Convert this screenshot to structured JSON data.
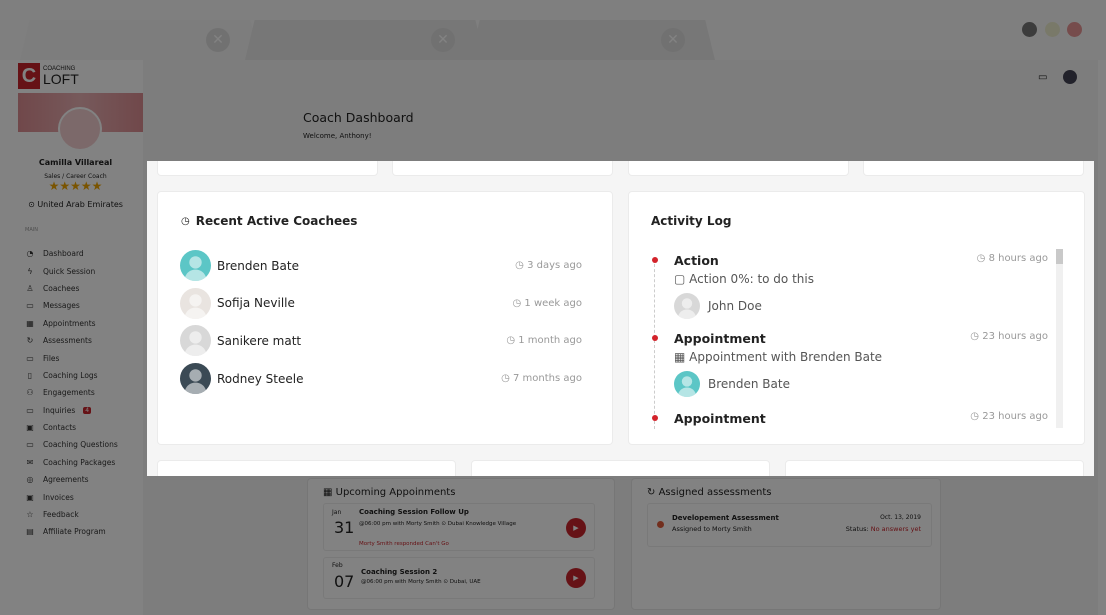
{
  "browser": {
    "tabs": [
      {
        "close": "✕"
      },
      {
        "close": "✕"
      },
      {
        "close": "✕"
      }
    ],
    "window_buttons": [
      "#777777",
      "#e0e0c8",
      "#e38a8a"
    ]
  },
  "brand": {
    "mark": "C",
    "small": "COACHING",
    "name": "LOFT",
    "color": "#c8242b"
  },
  "profile": {
    "name": "Camilla Villareal",
    "role": "Sales / Career Coach",
    "stars": "★★★★★",
    "rating": 4.5,
    "location": "United Arab Emirates"
  },
  "sidebar": {
    "section": "MAIN",
    "items": [
      {
        "label": "Dashboard",
        "icon": "dashboard-icon",
        "glyph": "◔"
      },
      {
        "label": "Quick Session",
        "icon": "lightning-icon",
        "glyph": "ϟ"
      },
      {
        "label": "Coachees",
        "icon": "users-icon",
        "glyph": "♙"
      },
      {
        "label": "Messages",
        "icon": "message-icon",
        "glyph": "▭"
      },
      {
        "label": "Appointments",
        "icon": "calendar-icon",
        "glyph": "▦"
      },
      {
        "label": "Assessments",
        "icon": "refresh-icon",
        "glyph": "↻"
      },
      {
        "label": "Files",
        "icon": "folder-icon",
        "glyph": "▭"
      },
      {
        "label": "Coaching Logs",
        "icon": "book-icon",
        "glyph": "▯"
      },
      {
        "label": "Engagements",
        "icon": "group-icon",
        "glyph": "⚇"
      },
      {
        "label": "Inquiries",
        "icon": "inquiry-icon",
        "glyph": "▭",
        "badge": "4"
      },
      {
        "label": "Contacts",
        "icon": "contacts-icon",
        "glyph": "▣"
      },
      {
        "label": "Coaching Questions",
        "icon": "question-icon",
        "glyph": "▭"
      },
      {
        "label": "Coaching Packages",
        "icon": "package-icon",
        "glyph": "✉"
      },
      {
        "label": "Agreements",
        "icon": "handshake-icon",
        "glyph": "◎"
      },
      {
        "label": "Invoices",
        "icon": "invoice-icon",
        "glyph": "▣"
      },
      {
        "label": "Feedback",
        "icon": "star-icon",
        "glyph": "☆"
      },
      {
        "label": "Affiliate Program",
        "icon": "gift-icon",
        "glyph": "▤"
      }
    ]
  },
  "header": {
    "title": "Coach Dashboard",
    "welcome": "Welcome, Anthony!"
  },
  "coachees": {
    "title": "Recent Active Coachees",
    "items": [
      {
        "name": "Brenden Bate",
        "time": "3 days ago",
        "avatar": "#5cc6c6"
      },
      {
        "name": "Sofija Neville",
        "time": "1 week ago",
        "avatar": "#e9e4e0"
      },
      {
        "name": "Sanikere matt",
        "time": "1 month ago",
        "avatar": "#d8d8d8"
      },
      {
        "name": "Rodney Steele",
        "time": "7 months ago",
        "avatar": "#3b4a55"
      }
    ]
  },
  "activity": {
    "title": "Activity Log",
    "items": [
      {
        "title": "Action",
        "time": "8 hours ago",
        "desc": "Action 0%: to do this",
        "user": "John Doe",
        "avatar": "#d8d8d8"
      },
      {
        "title": "Appointment",
        "time": "23 hours ago",
        "desc": "Appointment with Brenden Bate",
        "user": "Brenden Bate",
        "avatar": "#5cc6c6"
      },
      {
        "title": "Appointment",
        "time": "23 hours ago"
      }
    ]
  },
  "upcoming": {
    "title": "Upcoming Appoinments",
    "items": [
      {
        "month": "Jan",
        "day": "31",
        "title": "Coaching Session Follow Up",
        "detail": "@06:00 pm with Morty Smith ⊙ Dubai Knowledge Village",
        "note": "Morty Smith responded Can't Go"
      },
      {
        "month": "Feb",
        "day": "07",
        "title": "Coaching Session 2",
        "detail": "@06:00 pm with Morty Smith ⊙ Dubai, UAE"
      }
    ]
  },
  "assessments": {
    "title": "Assigned assessments",
    "items": [
      {
        "title": "Developement Assessment",
        "assigned": "Assigned to Morty Smith",
        "date": "Oct. 13, 2019",
        "status_label": "Status:",
        "status": "No answers yet"
      }
    ]
  }
}
